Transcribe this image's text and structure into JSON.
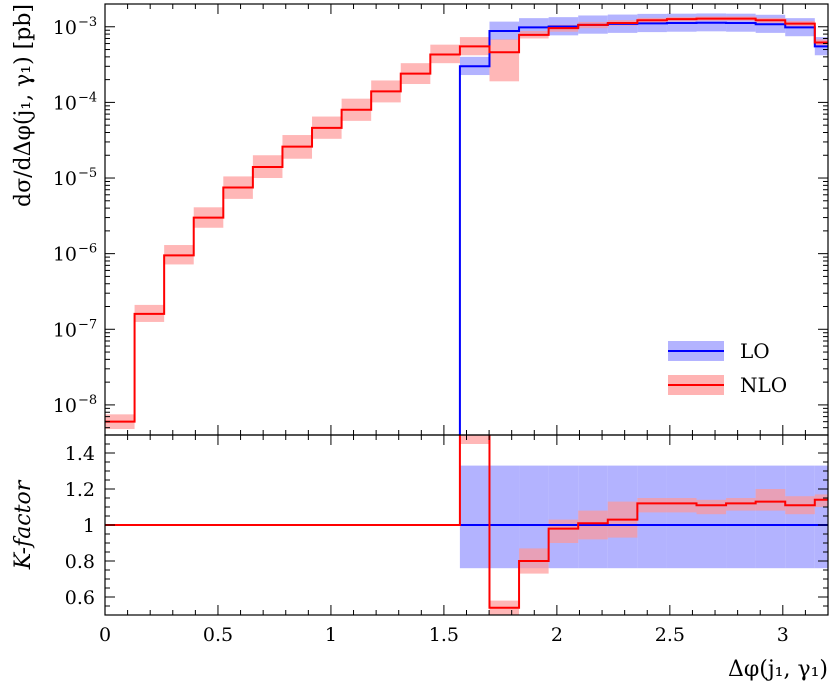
{
  "chart_data": [
    {
      "panel": "main",
      "type": "line",
      "ylabel": "dσ/dΔφ(j₁, γ₁) [pb]",
      "yscale": "log",
      "ylim": [
        4e-09,
        0.002
      ],
      "xlim": [
        0,
        3.2
      ],
      "y_ticks": [
        {
          "value": 1e-08,
          "label": "10",
          "exp": "−8"
        },
        {
          "value": 1e-07,
          "label": "10",
          "exp": "−7"
        },
        {
          "value": 1e-06,
          "label": "10",
          "exp": "−6"
        },
        {
          "value": 1e-05,
          "label": "10",
          "exp": "−5"
        },
        {
          "value": 0.0001,
          "label": "10",
          "exp": "−4"
        },
        {
          "value": 0.001,
          "label": "10",
          "exp": "−3"
        }
      ],
      "bin_edges": [
        0,
        0.1309,
        0.2618,
        0.3927,
        0.5236,
        0.6545,
        0.7854,
        0.9163,
        1.0472,
        1.1781,
        1.309,
        1.4399,
        1.5708,
        1.7017,
        1.8326,
        1.9635,
        2.0944,
        2.2253,
        2.3562,
        2.4871,
        2.618,
        2.7489,
        2.8798,
        3.0107,
        3.1416,
        3.2
      ],
      "legend": [
        {
          "name": "LO",
          "color": "#0000ff",
          "band": "#9999ff"
        },
        {
          "name": "NLO",
          "color": "#ff0000",
          "band": "#ff9999"
        }
      ],
      "legend_position": "bottom-right",
      "series": [
        {
          "name": "LO",
          "values": [
            null,
            null,
            null,
            null,
            null,
            null,
            null,
            null,
            null,
            null,
            null,
            null,
            0.0003,
            0.00088,
            0.00098,
            0.00101,
            0.00106,
            0.00109,
            0.00111,
            0.00112,
            0.00113,
            0.00112,
            0.00108,
            0.00098,
            0.00055
          ],
          "band_low": [
            null,
            null,
            null,
            null,
            null,
            null,
            null,
            null,
            null,
            null,
            null,
            null,
            0.00023,
            0.00067,
            0.00075,
            0.00077,
            0.00081,
            0.00083,
            0.00085,
            0.00086,
            0.00087,
            0.00086,
            0.00083,
            0.00075,
            0.00042
          ],
          "band_high": [
            null,
            null,
            null,
            null,
            null,
            null,
            null,
            null,
            null,
            null,
            null,
            null,
            0.0004,
            0.00117,
            0.0013,
            0.00134,
            0.00141,
            0.00145,
            0.00148,
            0.00149,
            0.0015,
            0.00149,
            0.00144,
            0.0013,
            0.00073
          ]
        },
        {
          "name": "NLO",
          "values": [
            6e-09,
            1.6e-07,
            9.5e-07,
            3e-06,
            7.5e-06,
            1.4e-05,
            2.6e-05,
            4.6e-05,
            8e-05,
            0.00014,
            0.00024,
            0.00043,
            0.00055,
            0.00046,
            0.00078,
            0.00096,
            0.00106,
            0.00112,
            0.00122,
            0.00126,
            0.00128,
            0.00128,
            0.00122,
            0.0011,
            0.00062
          ],
          "band_low": [
            4.8e-09,
            1.25e-07,
            7.2e-07,
            2.2e-06,
            5.3e-06,
            1e-05,
            1.8e-05,
            3.3e-05,
            5.7e-05,
            0.0001,
            0.000175,
            0.00033,
            0.00042,
            0.00019,
            0.0007,
            0.00086,
            0.00096,
            0.00103,
            0.00114,
            0.00118,
            0.0012,
            0.0012,
            0.00113,
            0.00101,
            0.00057
          ],
          "band_high": [
            7.5e-09,
            2.1e-07,
            1.3e-06,
            4.1e-06,
            1.05e-05,
            2e-05,
            3.7e-05,
            6.5e-05,
            0.000112,
            0.000195,
            0.00033,
            0.00058,
            0.00073,
            0.00068,
            0.00088,
            0.00106,
            0.00116,
            0.00122,
            0.00131,
            0.00135,
            0.00137,
            0.00137,
            0.00131,
            0.00119,
            0.00068
          ]
        }
      ]
    },
    {
      "panel": "ratio",
      "type": "line",
      "ylabel": "K-factor",
      "xlabel": "Δφ(j₁, γ₁)",
      "ylim": [
        0.5,
        1.5
      ],
      "xlim": [
        0,
        3.2
      ],
      "y_ticks": [
        0.6,
        0.8,
        1.0,
        1.2,
        1.4
      ],
      "y_tick_labels": [
        "0.6",
        "0.8",
        "1",
        "1.2",
        "1.4"
      ],
      "x_ticks": [
        0,
        0.5,
        1,
        1.5,
        2,
        2.5,
        3
      ],
      "x_tick_labels": [
        "0",
        "0.5",
        "1",
        "1.5",
        "2",
        "2.5",
        "3"
      ],
      "bin_edges": [
        0,
        0.1309,
        0.2618,
        0.3927,
        0.5236,
        0.6545,
        0.7854,
        0.9163,
        1.0472,
        1.1781,
        1.309,
        1.4399,
        1.5708,
        1.7017,
        1.8326,
        1.9635,
        2.0944,
        2.2253,
        2.3562,
        2.4871,
        2.618,
        2.7489,
        2.8798,
        3.0107,
        3.1416,
        3.2
      ],
      "series": [
        {
          "name": "LO",
          "values": [
            1,
            1,
            1,
            1,
            1,
            1,
            1,
            1,
            1,
            1,
            1,
            1,
            1,
            1,
            1,
            1,
            1,
            1,
            1,
            1,
            1,
            1,
            1,
            1,
            1
          ],
          "band_low": [
            null,
            null,
            null,
            null,
            null,
            null,
            null,
            null,
            null,
            null,
            null,
            null,
            0.76,
            0.76,
            0.76,
            0.76,
            0.76,
            0.76,
            0.76,
            0.76,
            0.76,
            0.76,
            0.76,
            0.76,
            0.76
          ],
          "band_high": [
            null,
            null,
            null,
            null,
            null,
            null,
            null,
            null,
            null,
            null,
            null,
            null,
            1.33,
            1.33,
            1.33,
            1.33,
            1.33,
            1.33,
            1.33,
            1.33,
            1.33,
            1.33,
            1.33,
            1.33,
            1.33
          ]
        },
        {
          "name": "NLO",
          "values": [
            1,
            1,
            1,
            1,
            1,
            1,
            1,
            1,
            1,
            1,
            1,
            1,
            1.83,
            0.54,
            0.8,
            0.98,
            1.01,
            1.03,
            1.12,
            1.12,
            1.11,
            1.12,
            1.13,
            1.11,
            1.14
          ],
          "band_low": [
            null,
            null,
            null,
            null,
            null,
            null,
            null,
            null,
            null,
            null,
            null,
            null,
            1.45,
            0.5,
            0.73,
            0.9,
            0.92,
            0.93,
            1.07,
            1.07,
            1.06,
            1.08,
            1.08,
            1.06,
            1.1
          ],
          "band_high": [
            null,
            null,
            null,
            null,
            null,
            null,
            null,
            null,
            null,
            null,
            null,
            null,
            1.5,
            0.58,
            0.87,
            1.03,
            1.08,
            1.13,
            1.15,
            1.15,
            1.14,
            1.15,
            1.2,
            1.16,
            1.17
          ]
        }
      ]
    }
  ]
}
